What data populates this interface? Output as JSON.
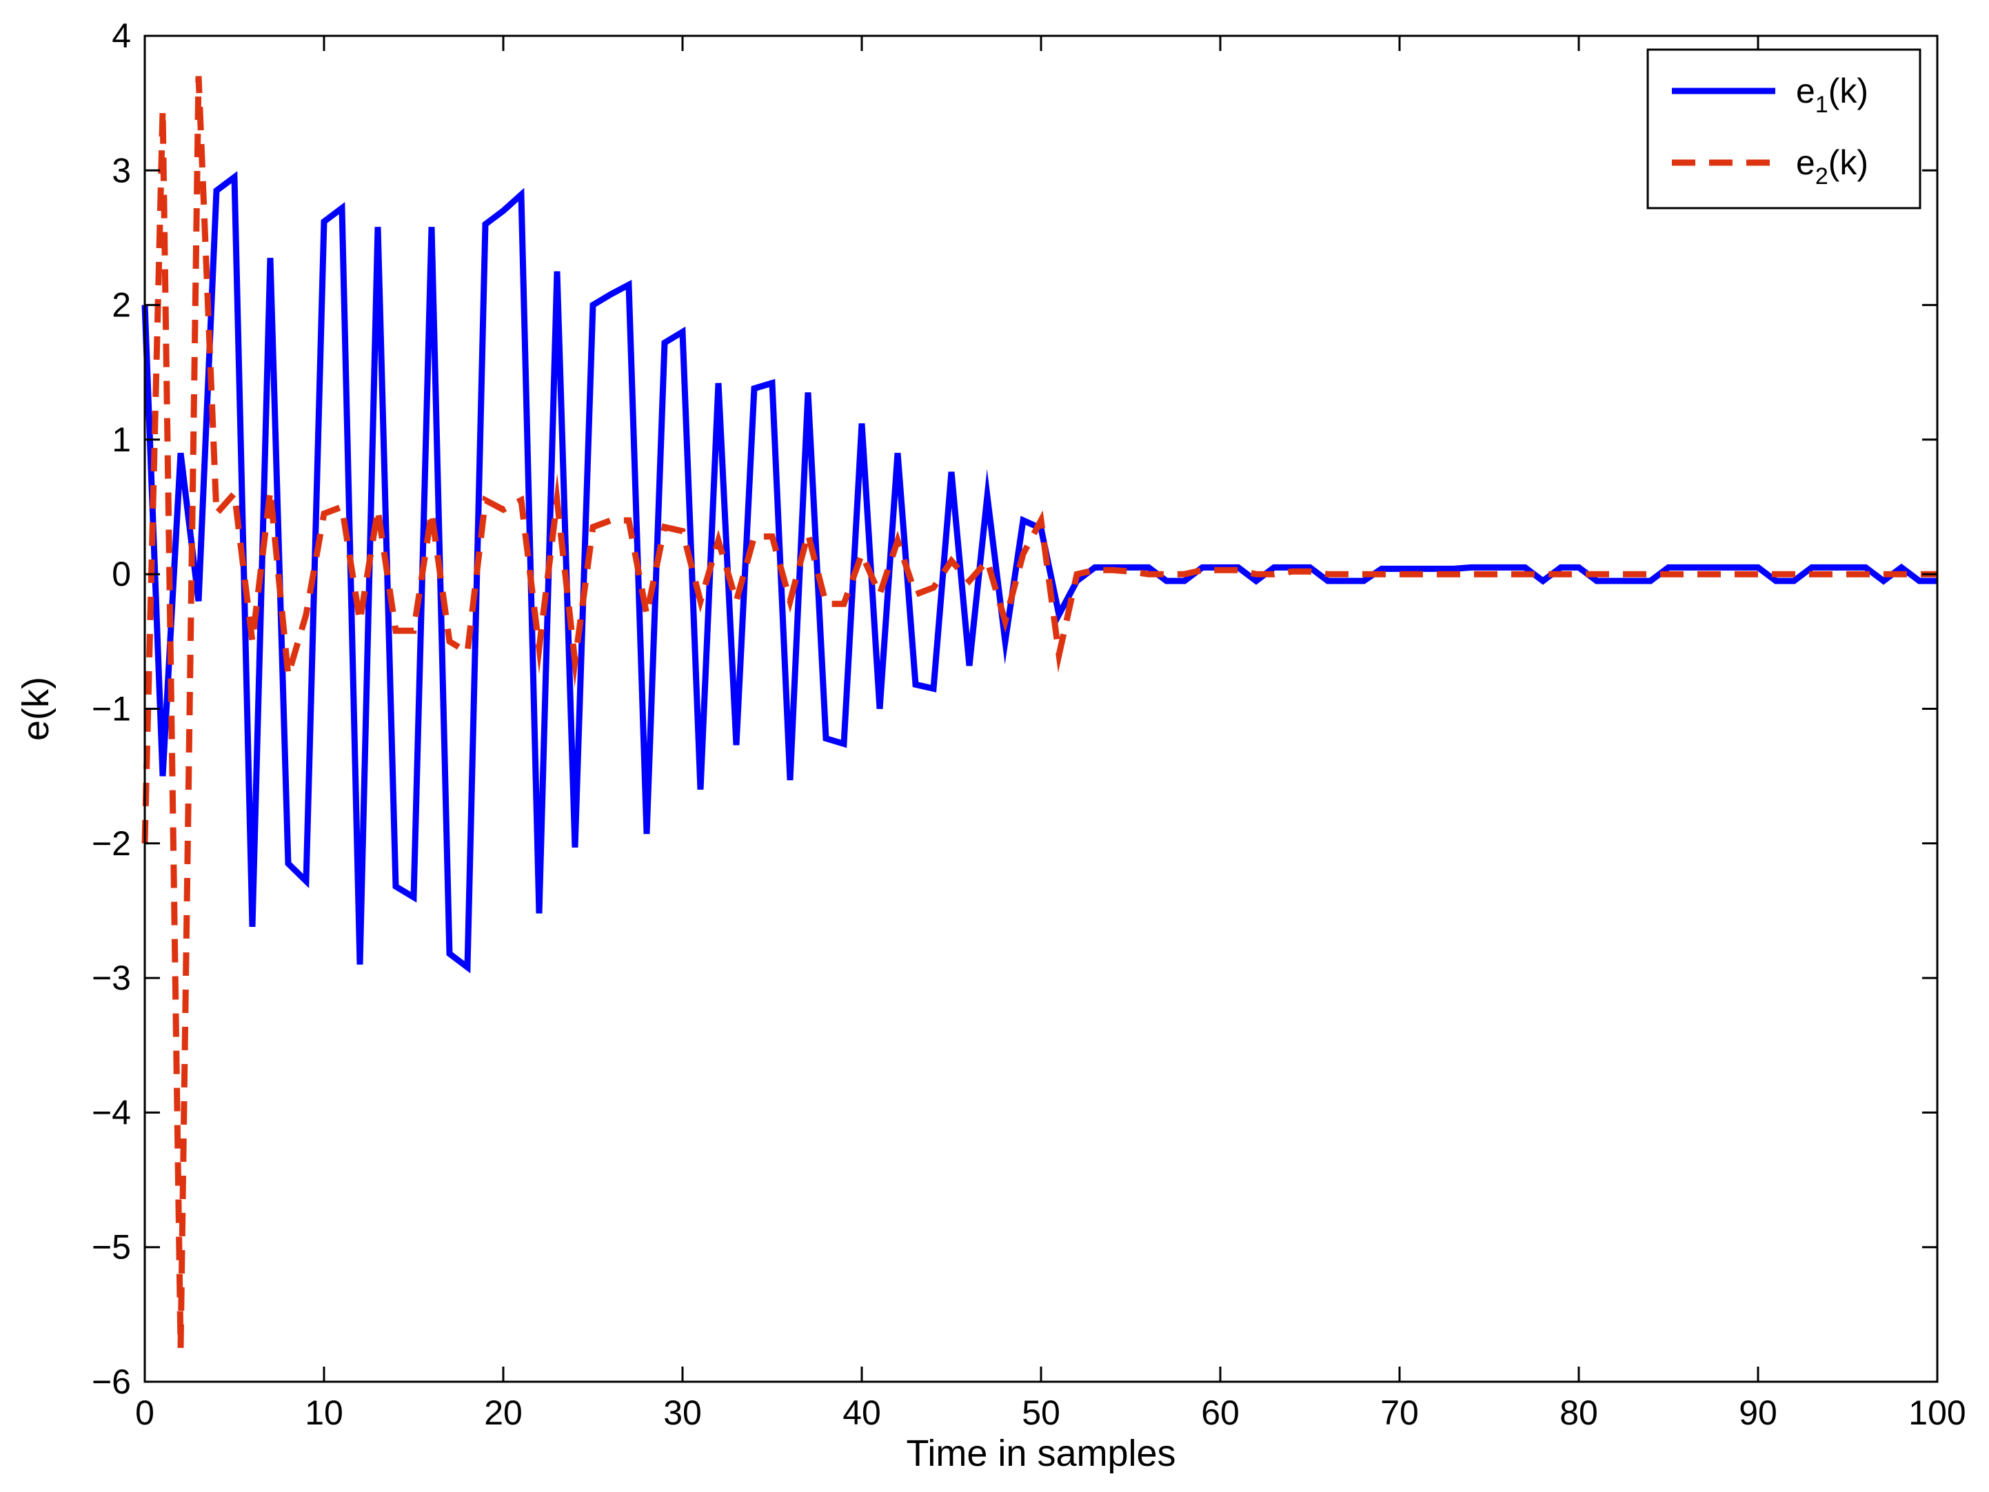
{
  "chart_data": {
    "type": "line",
    "title": "",
    "xlabel": "Time in samples",
    "ylabel": "e(k)",
    "xlim": [
      0,
      100
    ],
    "ylim": [
      -6,
      4
    ],
    "xticks": [
      0,
      10,
      20,
      30,
      40,
      50,
      60,
      70,
      80,
      90,
      100
    ],
    "yticks": [
      -6,
      -5,
      -4,
      -3,
      -2,
      -1,
      0,
      1,
      2,
      3,
      4
    ],
    "xtick_labels": [
      "0",
      "10",
      "20",
      "30",
      "40",
      "50",
      "60",
      "70",
      "80",
      "90",
      "100"
    ],
    "ytick_labels": [
      "−6",
      "−5",
      "−4",
      "−3",
      "−2",
      "−1",
      "0",
      "1",
      "2",
      "3",
      "4"
    ],
    "grid": false,
    "legend_position": "top-right",
    "series": [
      {
        "name": "e1(k)",
        "legend_base": "e",
        "legend_sub": "1",
        "legend_tail": "(k)",
        "color": "#0000ff",
        "style": "solid",
        "x": [
          0,
          1,
          2,
          3,
          4,
          5,
          6,
          7,
          8,
          9,
          10,
          11,
          12,
          13,
          14,
          15,
          16,
          17,
          18,
          19,
          20,
          21,
          22,
          23,
          24,
          25,
          26,
          27,
          28,
          29,
          30,
          31,
          32,
          33,
          34,
          35,
          36,
          37,
          38,
          39,
          40,
          41,
          42,
          43,
          44,
          45,
          46,
          47,
          48,
          49,
          50,
          51,
          52,
          53,
          54,
          55,
          56,
          57,
          58,
          59,
          60,
          61,
          62,
          63,
          64,
          65,
          66,
          67,
          68,
          69,
          70,
          71,
          72,
          73,
          74,
          75,
          76,
          77,
          78,
          79,
          80,
          81,
          82,
          83,
          84,
          85,
          86,
          87,
          88,
          89,
          90,
          91,
          92,
          93,
          94,
          95,
          96,
          97,
          98,
          99,
          100
        ],
        "y": [
          2.0,
          -1.5,
          0.9,
          -0.2,
          2.85,
          2.95,
          -2.62,
          2.35,
          -2.15,
          -2.28,
          2.62,
          2.72,
          -2.9,
          2.58,
          -2.32,
          -2.4,
          2.58,
          -2.82,
          -2.92,
          2.6,
          2.7,
          2.82,
          -2.52,
          2.25,
          -2.03,
          2.0,
          2.08,
          2.15,
          -1.93,
          1.72,
          1.8,
          -1.6,
          1.42,
          -1.27,
          1.38,
          1.42,
          -1.53,
          1.35,
          -1.22,
          -1.26,
          1.12,
          -1.0,
          0.9,
          -0.82,
          -0.85,
          0.76,
          -0.68,
          0.58,
          -0.5,
          0.4,
          0.34,
          -0.3,
          -0.05,
          0.05,
          0.05,
          0.05,
          0.05,
          -0.05,
          -0.05,
          0.05,
          0.05,
          0.05,
          -0.05,
          0.05,
          0.05,
          0.05,
          -0.05,
          -0.05,
          -0.05,
          0.04,
          0.04,
          0.04,
          0.04,
          0.04,
          0.05,
          0.05,
          0.05,
          0.05,
          -0.05,
          0.05,
          0.05,
          -0.05,
          -0.05,
          -0.05,
          -0.05,
          0.05,
          0.05,
          0.05,
          0.05,
          0.05,
          0.05,
          -0.05,
          -0.05,
          0.05,
          0.05,
          0.05,
          0.05,
          -0.05,
          0.05,
          -0.05,
          -0.05
        ]
      },
      {
        "name": "e2(k)",
        "legend_base": "e",
        "legend_sub": "2",
        "legend_tail": "(k)",
        "color": "#dd3311",
        "style": "dashed",
        "x": [
          0,
          1,
          2,
          3,
          4,
          5,
          6,
          7,
          8,
          9,
          10,
          11,
          12,
          13,
          14,
          15,
          16,
          17,
          18,
          19,
          20,
          21,
          22,
          23,
          24,
          25,
          26,
          27,
          28,
          29,
          30,
          31,
          32,
          33,
          34,
          35,
          36,
          37,
          38,
          39,
          40,
          41,
          42,
          43,
          44,
          45,
          46,
          47,
          48,
          49,
          50,
          51,
          52,
          53,
          54,
          55,
          56,
          57,
          58,
          59,
          60,
          61,
          62,
          63,
          64,
          65,
          66,
          67,
          68,
          69,
          70,
          71,
          72,
          73,
          74,
          75,
          76,
          77,
          78,
          79,
          80,
          81,
          82,
          83,
          84,
          85,
          86,
          87,
          88,
          89,
          90,
          91,
          92,
          93,
          94,
          95,
          96,
          97,
          98,
          99,
          100
        ],
        "y": [
          -2.0,
          3.45,
          -5.75,
          3.7,
          0.45,
          0.6,
          -0.5,
          0.62,
          -0.75,
          -0.3,
          0.45,
          0.5,
          -0.35,
          0.48,
          -0.42,
          -0.42,
          0.46,
          -0.5,
          -0.58,
          0.55,
          0.48,
          0.55,
          -0.55,
          0.55,
          -0.65,
          0.35,
          0.4,
          0.4,
          -0.3,
          0.35,
          0.32,
          -0.2,
          0.25,
          -0.2,
          0.28,
          0.28,
          -0.2,
          0.3,
          -0.22,
          -0.22,
          0.15,
          -0.15,
          0.25,
          -0.15,
          -0.1,
          0.1,
          -0.05,
          0.1,
          -0.35,
          0.15,
          0.4,
          -0.6,
          0.0,
          0.03,
          0.03,
          0.02,
          0.0,
          0.0,
          0.0,
          0.03,
          0.03,
          0.03,
          0.0,
          0.0,
          0.02,
          0.02,
          0.0,
          0.0,
          0.0,
          0.0,
          0.0,
          0.0,
          0.0,
          0.0,
          0.0,
          0.0,
          0.0,
          0.0,
          0.0,
          0.0,
          0.0,
          0.0,
          0.0,
          0.0,
          0.0,
          0.0,
          0.0,
          0.0,
          0.0,
          0.0,
          0.0,
          0.0,
          0.0,
          0.0,
          0.0,
          0.0,
          0.0,
          0.0,
          0.0,
          0.0,
          0.0
        ]
      }
    ]
  }
}
